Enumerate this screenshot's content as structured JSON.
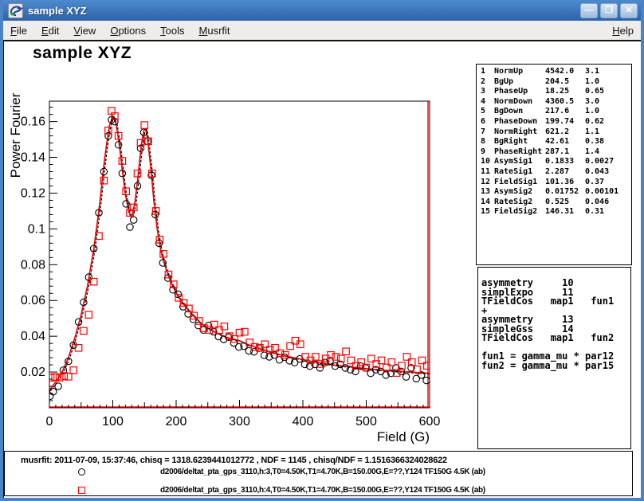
{
  "window": {
    "title": "sample XYZ",
    "buttons": {
      "minimize": "—",
      "maximize": "❒",
      "close": "✕"
    }
  },
  "menu": {
    "items": [
      {
        "label": "File",
        "accel": 0
      },
      {
        "label": "Edit",
        "accel": 0
      },
      {
        "label": "View",
        "accel": 0
      },
      {
        "label": "Options",
        "accel": 0
      },
      {
        "label": "Tools",
        "accel": 0
      },
      {
        "label": "Musrfit",
        "accel": 0
      }
    ],
    "help": {
      "label": "Help",
      "accel": 0
    }
  },
  "canvas": {
    "title": "sample XYZ"
  },
  "chart_data": {
    "type": "scatter",
    "title": "sample XYZ",
    "xlabel": "Field (G)",
    "ylabel": "Power Fourier",
    "xlim": [
      0,
      600
    ],
    "ylim": [
      0,
      0.1714
    ],
    "xticks": [
      0,
      100,
      200,
      300,
      400,
      500,
      600
    ],
    "ytick_labels": [
      "0.02",
      "0.04",
      "0.06",
      "0.08",
      "0.1",
      "0.12",
      "0.14",
      "0.16"
    ],
    "grid": false,
    "frame_color": "#000000",
    "fit_color": "#ee0000",
    "fit_curve": [
      [
        0,
        0.01
      ],
      [
        10,
        0.0145
      ],
      [
        20,
        0.02
      ],
      [
        30,
        0.028
      ],
      [
        40,
        0.039
      ],
      [
        50,
        0.052
      ],
      [
        60,
        0.068
      ],
      [
        70,
        0.089
      ],
      [
        75,
        0.102
      ],
      [
        80,
        0.116
      ],
      [
        85,
        0.133
      ],
      [
        90,
        0.147
      ],
      [
        95,
        0.158
      ],
      [
        100,
        0.163
      ],
      [
        105,
        0.159
      ],
      [
        110,
        0.148
      ],
      [
        115,
        0.133
      ],
      [
        120,
        0.119
      ],
      [
        125,
        0.11
      ],
      [
        128,
        0.107
      ],
      [
        131,
        0.108
      ],
      [
        135,
        0.115
      ],
      [
        140,
        0.13
      ],
      [
        145,
        0.147
      ],
      [
        149,
        0.155
      ],
      [
        152,
        0.156
      ],
      [
        155,
        0.15
      ],
      [
        160,
        0.134
      ],
      [
        165,
        0.115
      ],
      [
        170,
        0.1
      ],
      [
        175,
        0.0895
      ],
      [
        180,
        0.082
      ],
      [
        185,
        0.0765
      ],
      [
        190,
        0.072
      ],
      [
        195,
        0.0678
      ],
      [
        200,
        0.064
      ],
      [
        210,
        0.0585
      ],
      [
        220,
        0.0545
      ],
      [
        230,
        0.0505
      ],
      [
        240,
        0.047
      ],
      [
        250,
        0.0445
      ],
      [
        260,
        0.0425
      ],
      [
        270,
        0.0408
      ],
      [
        280,
        0.0393
      ],
      [
        290,
        0.0383
      ],
      [
        300,
        0.0375
      ],
      [
        310,
        0.0358
      ],
      [
        320,
        0.0345
      ],
      [
        330,
        0.0333
      ],
      [
        340,
        0.0322
      ],
      [
        350,
        0.0311
      ],
      [
        360,
        0.0301
      ],
      [
        370,
        0.0292
      ],
      [
        380,
        0.0284
      ],
      [
        390,
        0.0277
      ],
      [
        400,
        0.027
      ],
      [
        410,
        0.0262
      ],
      [
        420,
        0.0255
      ],
      [
        430,
        0.0249
      ],
      [
        440,
        0.0244
      ],
      [
        450,
        0.0239
      ],
      [
        460,
        0.0235
      ],
      [
        470,
        0.0231
      ],
      [
        480,
        0.0227
      ],
      [
        490,
        0.0223
      ],
      [
        500,
        0.0219
      ],
      [
        510,
        0.0216
      ],
      [
        520,
        0.0213
      ],
      [
        530,
        0.021
      ],
      [
        540,
        0.0207
      ],
      [
        550,
        0.0204
      ],
      [
        560,
        0.0202
      ],
      [
        570,
        0.02
      ],
      [
        580,
        0.0197
      ],
      [
        590,
        0.0195
      ],
      [
        600,
        0.0193
      ]
    ],
    "series": [
      {
        "name": "run h:3",
        "marker": "circle",
        "color": "#000000",
        "points": [
          [
            1,
            0.0065
          ],
          [
            6,
            0.009
          ],
          [
            14,
            0.012
          ],
          [
            22,
            0.021
          ],
          [
            30,
            0.026
          ],
          [
            38,
            0.035
          ],
          [
            46,
            0.048
          ],
          [
            54,
            0.059
          ],
          [
            62,
            0.073
          ],
          [
            70,
            0.089
          ],
          [
            78,
            0.109
          ],
          [
            86,
            0.132
          ],
          [
            93,
            0.152
          ],
          [
            98,
            0.161
          ],
          [
            103,
            0.16
          ],
          [
            109,
            0.147
          ],
          [
            115,
            0.131
          ],
          [
            121,
            0.114
          ],
          [
            127,
            0.101
          ],
          [
            133,
            0.105
          ],
          [
            139,
            0.124
          ],
          [
            144,
            0.145
          ],
          [
            149,
            0.154
          ],
          [
            155,
            0.149
          ],
          [
            161,
            0.13
          ],
          [
            167,
            0.108
          ],
          [
            173,
            0.092
          ],
          [
            179,
            0.081
          ],
          [
            187,
            0.0725
          ],
          [
            195,
            0.066
          ],
          [
            203,
            0.0635
          ],
          [
            211,
            0.0565
          ],
          [
            219,
            0.0525
          ],
          [
            227,
            0.0495
          ],
          [
            235,
            0.046
          ],
          [
            243,
            0.0435
          ],
          [
            251,
            0.046
          ],
          [
            259,
            0.0425
          ],
          [
            267,
            0.0398
          ],
          [
            275,
            0.0383
          ],
          [
            283,
            0.0395
          ],
          [
            291,
            0.0363
          ],
          [
            299,
            0.034
          ],
          [
            307,
            0.0345
          ],
          [
            315,
            0.0318
          ],
          [
            323,
            0.0313
          ],
          [
            331,
            0.0333
          ],
          [
            339,
            0.0293
          ],
          [
            347,
            0.0285
          ],
          [
            355,
            0.0295
          ],
          [
            363,
            0.0268
          ],
          [
            371,
            0.0283
          ],
          [
            379,
            0.0263
          ],
          [
            387,
            0.0253
          ],
          [
            395,
            0.0273
          ],
          [
            403,
            0.0243
          ],
          [
            411,
            0.0233
          ],
          [
            419,
            0.0243
          ],
          [
            427,
            0.0223
          ],
          [
            435,
            0.0253
          ],
          [
            443,
            0.0263
          ],
          [
            451,
            0.0233
          ],
          [
            459,
            0.0243
          ],
          [
            467,
            0.0223
          ],
          [
            475,
            0.0213
          ],
          [
            483,
            0.0203
          ],
          [
            491,
            0.0233
          ],
          [
            499,
            0.0223
          ],
          [
            507,
            0.0193
          ],
          [
            515,
            0.0213
          ],
          [
            523,
            0.0203
          ],
          [
            531,
            0.0183
          ],
          [
            539,
            0.0193
          ],
          [
            547,
            0.0223
          ],
          [
            555,
            0.0203
          ],
          [
            563,
            0.0173
          ],
          [
            571,
            0.0223
          ],
          [
            579,
            0.0163
          ],
          [
            587,
            0.0183
          ],
          [
            595,
            0.0153
          ]
        ]
      },
      {
        "name": "run h:4",
        "marker": "square",
        "color": "#ff0000",
        "points": [
          [
            2,
            0.0168
          ],
          [
            9,
            0.0172
          ],
          [
            16,
            0.0169
          ],
          [
            23,
            0.0178
          ],
          [
            30,
            0.0174
          ],
          [
            38,
            0.021
          ],
          [
            46,
            0.0335
          ],
          [
            54,
            0.043
          ],
          [
            62,
            0.052
          ],
          [
            70,
            0.0705
          ],
          [
            78,
            0.096
          ],
          [
            86,
            0.127
          ],
          [
            93,
            0.155
          ],
          [
            98,
            0.166
          ],
          [
            103,
            0.163
          ],
          [
            109,
            0.152
          ],
          [
            115,
            0.138
          ],
          [
            121,
            0.121
          ],
          [
            127,
            0.109
          ],
          [
            133,
            0.112
          ],
          [
            139,
            0.131
          ],
          [
            144,
            0.148
          ],
          [
            150,
            0.158
          ],
          [
            156,
            0.149
          ],
          [
            162,
            0.131
          ],
          [
            168,
            0.11
          ],
          [
            174,
            0.094
          ],
          [
            180,
            0.086
          ],
          [
            188,
            0.0745
          ],
          [
            196,
            0.069
          ],
          [
            204,
            0.0615
          ],
          [
            212,
            0.0585
          ],
          [
            220,
            0.0555
          ],
          [
            228,
            0.0515
          ],
          [
            236,
            0.0485
          ],
          [
            244,
            0.0445
          ],
          [
            252,
            0.0435
          ],
          [
            260,
            0.0465
          ],
          [
            268,
            0.0435
          ],
          [
            276,
            0.0455
          ],
          [
            284,
            0.04
          ],
          [
            292,
            0.0385
          ],
          [
            300,
            0.042
          ],
          [
            308,
            0.0425
          ],
          [
            316,
            0.0365
          ],
          [
            324,
            0.034
          ],
          [
            332,
            0.0335
          ],
          [
            340,
            0.0355
          ],
          [
            348,
            0.0325
          ],
          [
            356,
            0.0335
          ],
          [
            364,
            0.0305
          ],
          [
            372,
            0.0295
          ],
          [
            380,
            0.0345
          ],
          [
            388,
            0.0375
          ],
          [
            396,
            0.0355
          ],
          [
            404,
            0.0285
          ],
          [
            412,
            0.0265
          ],
          [
            420,
            0.0285
          ],
          [
            428,
            0.0245
          ],
          [
            436,
            0.0275
          ],
          [
            444,
            0.0295
          ],
          [
            452,
            0.0285
          ],
          [
            460,
            0.0275
          ],
          [
            468,
            0.0315
          ],
          [
            476,
            0.0265
          ],
          [
            484,
            0.0235
          ],
          [
            492,
            0.0255
          ],
          [
            500,
            0.0225
          ],
          [
            508,
            0.0275
          ],
          [
            516,
            0.0245
          ],
          [
            524,
            0.0265
          ],
          [
            532,
            0.0225
          ],
          [
            540,
            0.0255
          ],
          [
            548,
            0.0195
          ],
          [
            556,
            0.0235
          ],
          [
            564,
            0.0285
          ],
          [
            572,
            0.0255
          ],
          [
            580,
            0.0215
          ],
          [
            588,
            0.0265
          ],
          [
            596,
            0.0235
          ]
        ]
      }
    ]
  },
  "param_box": {
    "rows": [
      [
        "1",
        "NormUp",
        "4542.0",
        "3.1"
      ],
      [
        "2",
        "BgUp",
        "204.5",
        "1.0"
      ],
      [
        "3",
        "PhaseUp",
        "18.25",
        "0.65"
      ],
      [
        "4",
        "NormDown",
        "4360.5",
        "3.0"
      ],
      [
        "5",
        "BgDown",
        "217.6",
        "1.0"
      ],
      [
        "6",
        "PhaseDown",
        "199.74",
        "0.62"
      ],
      [
        "7",
        "NormRight",
        "621.2",
        "1.1"
      ],
      [
        "8",
        "BgRight",
        "42.61",
        "0.38"
      ],
      [
        "9",
        "PhaseRight",
        "287.1",
        "1.4"
      ],
      [
        "10",
        "AsymSig1",
        "0.1833",
        "0.0027"
      ],
      [
        "11",
        "RateSig1",
        "2.287",
        "0.043"
      ],
      [
        "12",
        "FieldSig1",
        "101.36",
        "0.37"
      ],
      [
        "13",
        "AsymSig2",
        "0.01752",
        "0.00101"
      ],
      [
        "14",
        "RateSig2",
        "0.525",
        "0.046"
      ],
      [
        "15",
        "FieldSig2",
        "146.31",
        "0.31"
      ]
    ]
  },
  "theory_box": {
    "lines": [
      "asymmetry     10",
      "simplExpo     11",
      "TFieldCos   map1   fun1",
      "+",
      "asymmetry     13",
      "simpleGss     14",
      "TFieldCos   map1   fun2",
      "",
      "fun1 = gamma_mu * par12",
      "fun2 = gamma_mu * par15"
    ]
  },
  "legend": {
    "status_line": "musrfit: 2011-07-09, 15:37:46, chisq = 1318.6239441012772 , NDF = 1145 , chisq/NDF = 1.1516366324028622",
    "entries": [
      {
        "marker": "circle",
        "color": "#000000",
        "label": "d2006/deltat_pta_gps_3110,h:3,T0=4.50K,T1=4.70K,B=150.00G,E=??,Y124 TF150G 4.5K (ab)"
      },
      {
        "marker": "square",
        "color": "#ff0000",
        "label": "d2006/deltat_pta_gps_3110,h:4,T0=4.50K,T1=4.70K,B=150.00G,E=??,Y124 TF150G 4.5K (ab)"
      }
    ]
  }
}
